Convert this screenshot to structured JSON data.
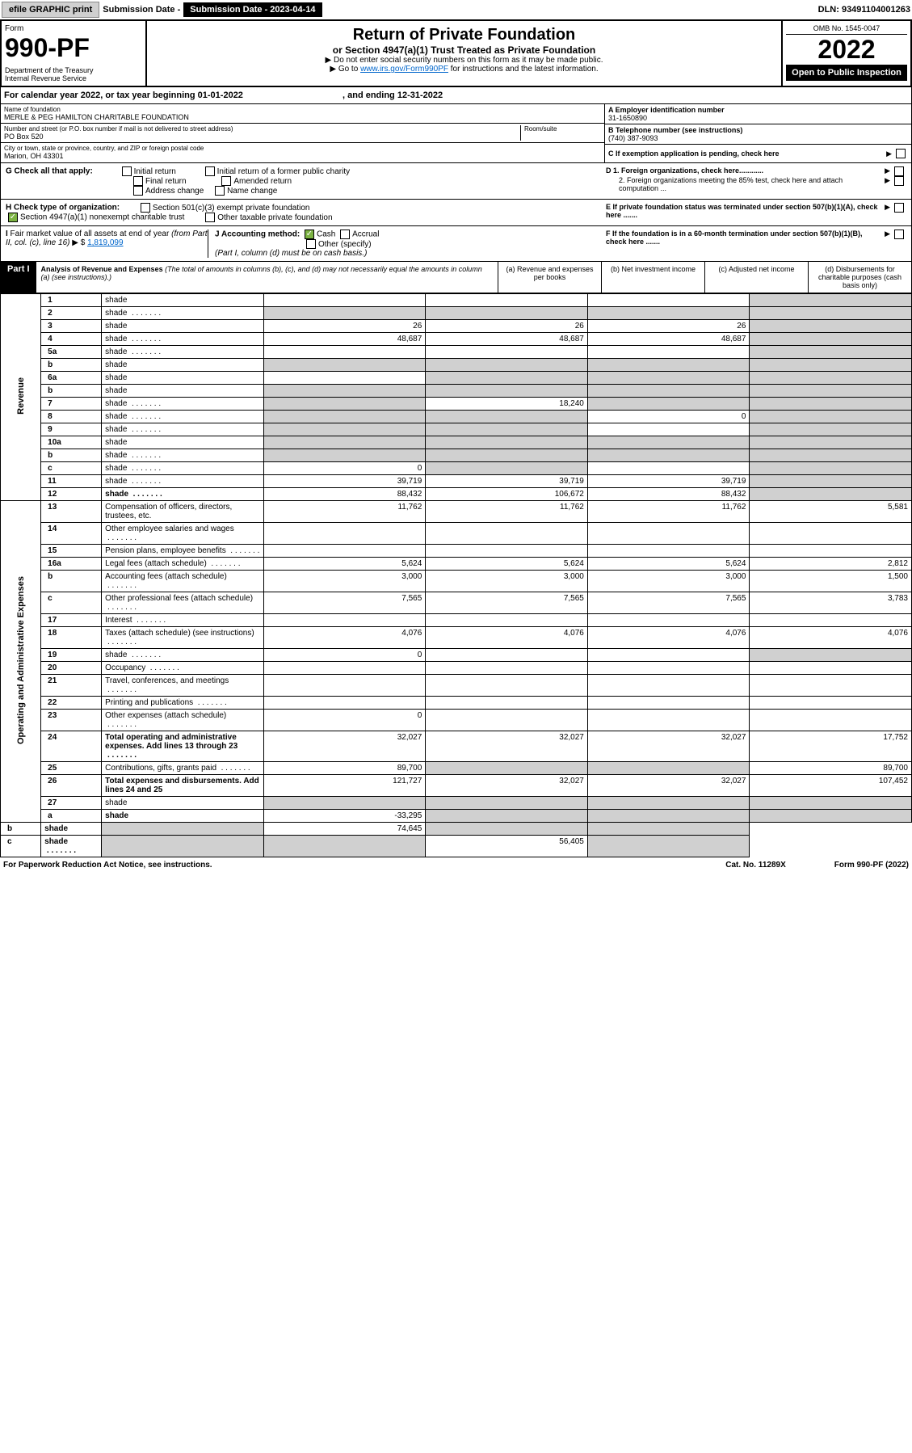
{
  "colors": {
    "link": "#0066cc",
    "shade": "#d0d0d0",
    "black": "#000000",
    "white": "#ffffff",
    "check_green": "#7cb342"
  },
  "top": {
    "efile": "efile GRAPHIC print",
    "sub_label": "Submission Date - 2023-04-14",
    "dln": "DLN: 93491104001263"
  },
  "header": {
    "form_label": "Form",
    "form_num": "990-PF",
    "dept": "Department of the Treasury\nInternal Revenue Service",
    "title": "Return of Private Foundation",
    "subtitle": "or Section 4947(a)(1) Trust Treated as Private Foundation",
    "note1": "▶ Do not enter social security numbers on this form as it may be made public.",
    "note2_pre": "▶ Go to ",
    "note2_link": "www.irs.gov/Form990PF",
    "note2_post": " for instructions and the latest information.",
    "omb": "OMB No. 1545-0047",
    "year": "2022",
    "open": "Open to Public Inspection"
  },
  "cal_year": {
    "pre": "For calendar year 2022, or tax year beginning ",
    "begin": "01-01-2022",
    "mid": ", and ending ",
    "end": "12-31-2022"
  },
  "info": {
    "name_label": "Name of foundation",
    "name": "MERLE & PEG HAMILTON CHARITABLE FOUNDATION",
    "addr_label": "Number and street (or P.O. box number if mail is not delivered to street address)",
    "room_label": "Room/suite",
    "addr": "PO Box 520",
    "city_label": "City or town, state or province, country, and ZIP or foreign postal code",
    "city": "Marion, OH  43301",
    "ein_label": "A Employer identification number",
    "ein": "31-1650890",
    "phone_label": "B Telephone number (see instructions)",
    "phone": "(740) 387-9093",
    "c_label": "C If exemption application is pending, check here",
    "d1": "D 1. Foreign organizations, check here............",
    "d2": "2. Foreign organizations meeting the 85% test, check here and attach computation ...",
    "e": "E If private foundation status was terminated under section 507(b)(1)(A), check here .......",
    "f": "F If the foundation is in a 60-month termination under section 507(b)(1)(B), check here ......."
  },
  "g": {
    "label": "G Check all that apply:",
    "opts": [
      "Initial return",
      "Final return",
      "Address change",
      "Initial return of a former public charity",
      "Amended return",
      "Name change"
    ]
  },
  "h": {
    "label": "H Check type of organization:",
    "opt1": "Section 501(c)(3) exempt private foundation",
    "opt2": "Section 4947(a)(1) nonexempt charitable trust",
    "opt3": "Other taxable private foundation"
  },
  "i": {
    "label": "I Fair market value of all assets at end of year (from Part II, col. (c), line 16) ▶ $",
    "val": "1,819,099"
  },
  "j": {
    "label": "J Accounting method:",
    "cash": "Cash",
    "accrual": "Accrual",
    "other": "Other (specify)",
    "note": "(Part I, column (d) must be on cash basis.)"
  },
  "part1": {
    "tag": "Part I",
    "title": "Analysis of Revenue and Expenses",
    "title_note": " (The total of amounts in columns (b), (c), and (d) may not necessarily equal the amounts in column (a) (see instructions).)",
    "col_a": "(a) Revenue and expenses per books",
    "col_b": "(b) Net investment income",
    "col_c": "(c) Adjusted net income",
    "col_d": "(d) Disbursements for charitable purposes (cash basis only)"
  },
  "vert": {
    "revenue": "Revenue",
    "expenses": "Operating and Administrative Expenses"
  },
  "rows": [
    {
      "n": "1",
      "d": "shade",
      "a": "",
      "b": "",
      "c": ""
    },
    {
      "n": "2",
      "d": "shade",
      "dots": true,
      "a": "shade",
      "b": "shade",
      "c": "shade"
    },
    {
      "n": "3",
      "d": "shade",
      "a": "26",
      "b": "26",
      "c": "26"
    },
    {
      "n": "4",
      "d": "shade",
      "dots": true,
      "a": "48,687",
      "b": "48,687",
      "c": "48,687"
    },
    {
      "n": "5a",
      "d": "shade",
      "dots": true,
      "a": "",
      "b": "",
      "c": ""
    },
    {
      "n": "b",
      "d": "shade",
      "a": "shade",
      "b": "shade",
      "c": "shade"
    },
    {
      "n": "6a",
      "d": "shade",
      "a": "",
      "b": "shade",
      "c": "shade"
    },
    {
      "n": "b",
      "d": "shade",
      "a": "shade",
      "b": "shade",
      "c": "shade"
    },
    {
      "n": "7",
      "d": "shade",
      "dots": true,
      "a": "shade",
      "b": "18,240",
      "c": "shade"
    },
    {
      "n": "8",
      "d": "shade",
      "dots": true,
      "a": "shade",
      "b": "shade",
      "c": "0"
    },
    {
      "n": "9",
      "d": "shade",
      "dots": true,
      "a": "shade",
      "b": "shade",
      "c": ""
    },
    {
      "n": "10a",
      "d": "shade",
      "a": "shade",
      "b": "shade",
      "c": "shade"
    },
    {
      "n": "b",
      "d": "shade",
      "dots": true,
      "a": "shade",
      "b": "shade",
      "c": "shade"
    },
    {
      "n": "c",
      "d": "shade",
      "dots": true,
      "a": "0",
      "b": "shade",
      "c": ""
    },
    {
      "n": "11",
      "d": "shade",
      "dots": true,
      "a": "39,719",
      "b": "39,719",
      "c": "39,719"
    },
    {
      "n": "12",
      "d": "shade",
      "dots": true,
      "bold": true,
      "a": "88,432",
      "b": "106,672",
      "c": "88,432"
    },
    {
      "n": "13",
      "d": "Compensation of officers, directors, trustees, etc.",
      "a": "11,762",
      "b": "11,762",
      "c": "11,762",
      "dv": "5,581"
    },
    {
      "n": "14",
      "d": "Other employee salaries and wages",
      "dots": true,
      "a": "",
      "b": "",
      "c": "",
      "dv": ""
    },
    {
      "n": "15",
      "d": "Pension plans, employee benefits",
      "dots": true,
      "a": "",
      "b": "",
      "c": "",
      "dv": ""
    },
    {
      "n": "16a",
      "d": "Legal fees (attach schedule)",
      "dots": true,
      "a": "5,624",
      "b": "5,624",
      "c": "5,624",
      "dv": "2,812"
    },
    {
      "n": "b",
      "d": "Accounting fees (attach schedule)",
      "dots": true,
      "a": "3,000",
      "b": "3,000",
      "c": "3,000",
      "dv": "1,500"
    },
    {
      "n": "c",
      "d": "Other professional fees (attach schedule)",
      "dots": true,
      "a": "7,565",
      "b": "7,565",
      "c": "7,565",
      "dv": "3,783"
    },
    {
      "n": "17",
      "d": "Interest",
      "dots": true,
      "a": "",
      "b": "",
      "c": "",
      "dv": ""
    },
    {
      "n": "18",
      "d": "Taxes (attach schedule) (see instructions)",
      "dots": true,
      "a": "4,076",
      "b": "4,076",
      "c": "4,076",
      "dv": "4,076"
    },
    {
      "n": "19",
      "d": "shade",
      "dots": true,
      "a": "0",
      "b": "",
      "c": ""
    },
    {
      "n": "20",
      "d": "Occupancy",
      "dots": true,
      "a": "",
      "b": "",
      "c": "",
      "dv": ""
    },
    {
      "n": "21",
      "d": "Travel, conferences, and meetings",
      "dots": true,
      "a": "",
      "b": "",
      "c": "",
      "dv": ""
    },
    {
      "n": "22",
      "d": "Printing and publications",
      "dots": true,
      "a": "",
      "b": "",
      "c": "",
      "dv": ""
    },
    {
      "n": "23",
      "d": "Other expenses (attach schedule)",
      "dots": true,
      "a": "0",
      "b": "",
      "c": "",
      "dv": ""
    },
    {
      "n": "24",
      "d": "Total operating and administrative expenses. Add lines 13 through 23",
      "dots": true,
      "bold": true,
      "a": "32,027",
      "b": "32,027",
      "c": "32,027",
      "dv": "17,752"
    },
    {
      "n": "25",
      "d": "Contributions, gifts, grants paid",
      "dots": true,
      "a": "89,700",
      "b": "shade",
      "c": "shade",
      "dv": "89,700"
    },
    {
      "n": "26",
      "d": "Total expenses and disbursements. Add lines 24 and 25",
      "bold": true,
      "a": "121,727",
      "b": "32,027",
      "c": "32,027",
      "dv": "107,452"
    },
    {
      "n": "27",
      "d": "shade",
      "a": "shade",
      "b": "shade",
      "c": "shade"
    },
    {
      "n": "a",
      "d": "shade",
      "bold": true,
      "a": "-33,295",
      "b": "shade",
      "c": "shade"
    },
    {
      "n": "b",
      "d": "shade",
      "bold": true,
      "a": "shade",
      "b": "74,645",
      "c": "shade"
    },
    {
      "n": "c",
      "d": "shade",
      "dots": true,
      "bold": true,
      "a": "shade",
      "b": "shade",
      "c": "56,405"
    }
  ],
  "footer": {
    "left": "For Paperwork Reduction Act Notice, see instructions.",
    "mid": "Cat. No. 11289X",
    "right": "Form 990-PF (2022)"
  }
}
